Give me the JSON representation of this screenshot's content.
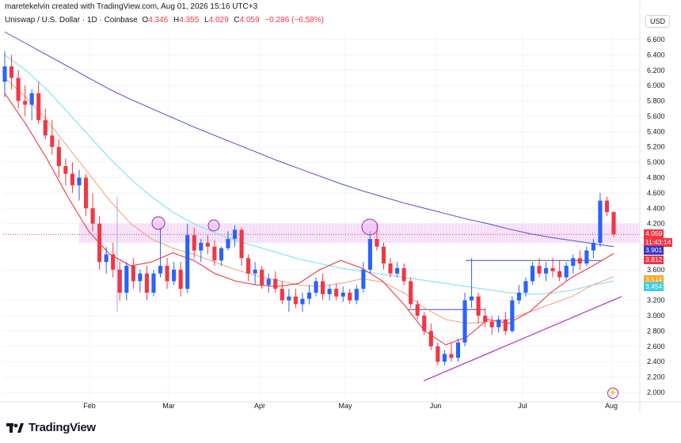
{
  "header": {
    "created_line": "maretekelvin created with TradingView.com, Aug 01, 2026 15:16 UTC+3"
  },
  "legend": {
    "symbol": "Uniswap / U.S. Dollar · 1D · Coinbase",
    "open_label": "O",
    "open": "4.346",
    "high_label": "H",
    "high": "4.355",
    "low_label": "L",
    "low": "4.029",
    "close_label": "C",
    "close": "4.059",
    "change": "−0.286 (−6.58%)"
  },
  "currency_button": "USD",
  "price_axis": {
    "ticks": [
      "6.600",
      "6.400",
      "6.200",
      "6.000",
      "5.800",
      "5.600",
      "5.400",
      "5.200",
      "5.000",
      "4.800",
      "4.600",
      "4.400",
      "4.200",
      "3.600",
      "3.200",
      "3.000",
      "2.800",
      "2.600",
      "2.400",
      "2.200",
      "2.000"
    ]
  },
  "price_tags": {
    "last_price": "4.059",
    "countdown": "11:43:14",
    "ma_blue": "3.901",
    "ma_red": "3.812",
    "ma_orange": "3.514",
    "ma_cyan": "3.454"
  },
  "time_axis": {
    "labels": [
      "Feb",
      "Mar",
      "Apr",
      "May",
      "Jun",
      "Jul",
      "Aug"
    ]
  },
  "footer": {
    "brand": "TradingView"
  },
  "colors": {
    "up": "#2962ff",
    "down": "#f23645",
    "ma_long": "#5b5fd6",
    "ma_mid": "#7fe0f0",
    "ma_orange": "#f4a582",
    "ma_red": "#f23645",
    "zone": "#e8b4f0",
    "trendline": "#b03ec9"
  },
  "chart_data": {
    "type": "candlestick",
    "title": "Uniswap / U.S. Dollar · 1D · Coinbase",
    "ylim": [
      2.0,
      6.7
    ],
    "ohlc": [
      [
        6.05,
        6.45,
        5.85,
        6.25
      ],
      [
        6.25,
        6.4,
        5.95,
        6.1
      ],
      [
        6.1,
        6.2,
        5.7,
        5.8
      ],
      [
        5.8,
        6.0,
        5.6,
        5.75
      ],
      [
        5.75,
        5.95,
        5.55,
        5.9
      ],
      [
        5.9,
        6.05,
        5.5,
        5.55
      ],
      [
        5.55,
        5.7,
        5.3,
        5.35
      ],
      [
        5.35,
        5.55,
        5.1,
        5.2
      ],
      [
        5.2,
        5.3,
        4.8,
        4.95
      ],
      [
        4.95,
        5.05,
        4.7,
        4.85
      ],
      [
        4.85,
        5.0,
        4.6,
        4.7
      ],
      [
        4.7,
        4.9,
        4.5,
        4.8
      ],
      [
        4.8,
        4.85,
        4.3,
        4.4
      ],
      [
        4.4,
        4.6,
        4.1,
        4.2
      ],
      [
        4.2,
        4.3,
        3.6,
        3.7
      ],
      [
        3.7,
        3.9,
        3.55,
        3.8
      ],
      [
        3.8,
        3.95,
        3.5,
        3.6
      ],
      [
        3.6,
        3.7,
        3.2,
        3.3
      ],
      [
        3.3,
        3.7,
        3.2,
        3.65
      ],
      [
        3.65,
        3.75,
        3.35,
        3.45
      ],
      [
        3.45,
        3.6,
        3.3,
        3.55
      ],
      [
        3.55,
        3.65,
        3.2,
        3.3
      ],
      [
        3.3,
        3.6,
        3.25,
        3.55
      ],
      [
        3.55,
        4.15,
        3.5,
        3.65
      ],
      [
        3.65,
        3.75,
        3.35,
        3.45
      ],
      [
        3.45,
        3.7,
        3.4,
        3.6
      ],
      [
        3.6,
        3.7,
        3.25,
        3.35
      ],
      [
        3.35,
        4.2,
        3.3,
        4.05
      ],
      [
        4.05,
        4.15,
        3.75,
        3.85
      ],
      [
        3.85,
        4.0,
        3.7,
        3.95
      ],
      [
        3.95,
        4.05,
        3.8,
        3.9
      ],
      [
        3.9,
        3.98,
        3.65,
        3.72
      ],
      [
        3.72,
        3.9,
        3.65,
        3.88
      ],
      [
        3.88,
        4.1,
        3.85,
        4.0
      ],
      [
        4.0,
        4.18,
        3.9,
        4.12
      ],
      [
        4.12,
        4.15,
        3.65,
        3.75
      ],
      [
        3.75,
        3.8,
        3.45,
        3.55
      ],
      [
        3.55,
        3.7,
        3.4,
        3.6
      ],
      [
        3.6,
        3.65,
        3.35,
        3.4
      ],
      [
        3.4,
        3.55,
        3.3,
        3.48
      ],
      [
        3.48,
        3.58,
        3.3,
        3.35
      ],
      [
        3.35,
        3.45,
        3.15,
        3.2
      ],
      [
        3.2,
        3.35,
        3.05,
        3.25
      ],
      [
        3.25,
        3.35,
        3.1,
        3.15
      ],
      [
        3.15,
        3.3,
        3.05,
        3.22
      ],
      [
        3.22,
        3.4,
        3.15,
        3.3
      ],
      [
        3.3,
        3.5,
        3.25,
        3.45
      ],
      [
        3.45,
        3.55,
        3.2,
        3.28
      ],
      [
        3.28,
        3.4,
        3.2,
        3.35
      ],
      [
        3.35,
        3.42,
        3.2,
        3.25
      ],
      [
        3.25,
        3.38,
        3.18,
        3.3
      ],
      [
        3.3,
        3.35,
        3.15,
        3.2
      ],
      [
        3.2,
        3.4,
        3.15,
        3.35
      ],
      [
        3.35,
        3.7,
        3.3,
        3.6
      ],
      [
        3.6,
        4.1,
        3.55,
        4.0
      ],
      [
        4.0,
        4.2,
        3.85,
        3.9
      ],
      [
        3.9,
        3.95,
        3.6,
        3.68
      ],
      [
        3.68,
        3.75,
        3.5,
        3.55
      ],
      [
        3.55,
        3.7,
        3.5,
        3.62
      ],
      [
        3.62,
        3.68,
        3.4,
        3.45
      ],
      [
        3.45,
        3.5,
        3.1,
        3.15
      ],
      [
        3.15,
        3.2,
        2.95,
        3.0
      ],
      [
        3.0,
        3.05,
        2.75,
        2.8
      ],
      [
        2.8,
        2.9,
        2.55,
        2.6
      ],
      [
        2.6,
        2.65,
        2.35,
        2.4
      ],
      [
        2.4,
        2.55,
        2.35,
        2.5
      ],
      [
        2.5,
        2.65,
        2.4,
        2.45
      ],
      [
        2.45,
        2.7,
        2.4,
        2.65
      ],
      [
        2.65,
        3.3,
        2.6,
        3.2
      ],
      [
        3.2,
        3.75,
        3.1,
        3.25
      ],
      [
        3.25,
        3.3,
        2.9,
        3.0
      ],
      [
        3.0,
        3.1,
        2.85,
        2.92
      ],
      [
        2.92,
        3.0,
        2.75,
        2.85
      ],
      [
        2.85,
        3.0,
        2.78,
        2.95
      ],
      [
        2.95,
        3.05,
        2.75,
        2.8
      ],
      [
        2.8,
        3.25,
        2.78,
        3.2
      ],
      [
        3.2,
        3.4,
        3.15,
        3.3
      ],
      [
        3.3,
        3.5,
        3.25,
        3.45
      ],
      [
        3.45,
        3.7,
        3.4,
        3.65
      ],
      [
        3.65,
        3.75,
        3.5,
        3.55
      ],
      [
        3.55,
        3.7,
        3.45,
        3.62
      ],
      [
        3.62,
        3.75,
        3.5,
        3.58
      ],
      [
        3.58,
        3.72,
        3.45,
        3.5
      ],
      [
        3.5,
        3.7,
        3.45,
        3.65
      ],
      [
        3.65,
        3.8,
        3.55,
        3.75
      ],
      [
        3.75,
        3.85,
        3.6,
        3.68
      ],
      [
        3.68,
        3.9,
        3.65,
        3.85
      ],
      [
        3.85,
        4.0,
        3.75,
        3.95
      ],
      [
        3.95,
        4.6,
        3.9,
        4.5
      ],
      [
        4.5,
        4.55,
        4.3,
        4.35
      ],
      [
        4.35,
        4.36,
        4.03,
        4.06
      ]
    ],
    "moving_averages": [
      {
        "color": "#5b5fd6",
        "values": [
          6.7,
          6.55,
          6.4,
          6.25,
          6.1,
          5.95,
          5.82,
          5.7,
          5.58,
          5.46,
          5.35,
          5.24,
          5.13,
          5.02,
          4.92,
          4.82,
          4.72,
          4.63,
          4.55,
          4.47,
          4.4,
          4.33,
          4.26,
          4.2,
          4.13,
          4.07,
          4.02,
          3.98,
          3.94,
          3.9
        ]
      },
      {
        "color": "#7fe0f0",
        "values": [
          6.4,
          6.2,
          5.95,
          5.65,
          5.35,
          5.05,
          4.78,
          4.55,
          4.35,
          4.2,
          4.08,
          3.98,
          3.9,
          3.82,
          3.74,
          3.68,
          3.62,
          3.58,
          3.54,
          3.5,
          3.46,
          3.42,
          3.38,
          3.34,
          3.3,
          3.28,
          3.29,
          3.33,
          3.4,
          3.45
        ]
      },
      {
        "color": "#f4a582",
        "values": [
          6.1,
          5.85,
          5.55,
          5.2,
          4.85,
          4.5,
          4.2,
          4.0,
          3.88,
          3.8,
          3.7,
          3.6,
          3.52,
          3.46,
          3.4,
          3.38,
          3.42,
          3.48,
          3.44,
          3.3,
          3.1,
          2.95,
          2.9,
          2.92,
          2.95,
          3.05,
          3.15,
          3.25,
          3.4,
          3.51
        ]
      },
      {
        "color": "#f23645",
        "values": [
          5.9,
          5.5,
          5.05,
          4.55,
          4.1,
          3.8,
          3.65,
          3.7,
          3.82,
          3.72,
          3.55,
          3.45,
          3.4,
          3.38,
          3.42,
          3.6,
          3.72,
          3.62,
          3.45,
          3.15,
          2.8,
          2.62,
          2.72,
          2.95,
          2.9,
          3.05,
          3.3,
          3.5,
          3.65,
          3.81
        ]
      }
    ],
    "resistance_zone": [
      3.95,
      4.2
    ],
    "horizontal_levels": [
      3.72,
      3.08
    ],
    "trendline": [
      [
        2.15,
        0
      ],
      [
        3.25,
        1
      ]
    ]
  }
}
